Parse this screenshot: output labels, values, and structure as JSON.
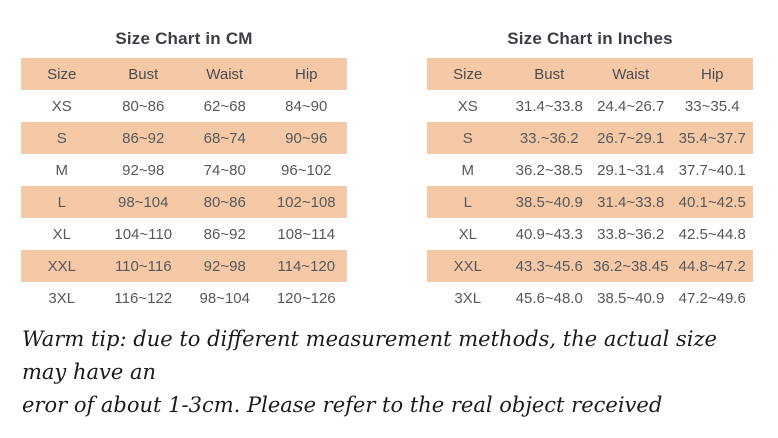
{
  "chart_data": [
    {
      "type": "table",
      "title": "Size Chart in CM",
      "columns": [
        "Size",
        "Bust",
        "Waist",
        "Hip"
      ],
      "rows": [
        [
          "XS",
          "80~86",
          "62~68",
          "84~90"
        ],
        [
          "S",
          "86~92",
          "68~74",
          "90~96"
        ],
        [
          "M",
          "92~98",
          "74~80",
          "96~102"
        ],
        [
          "L",
          "98~104",
          "80~86",
          "102~108"
        ],
        [
          "XL",
          "104~110",
          "86~92",
          "108~114"
        ],
        [
          "XXL",
          "110~116",
          "92~98",
          "114~120"
        ],
        [
          "3XL",
          "116~122",
          "98~104",
          "120~126"
        ]
      ]
    },
    {
      "type": "table",
      "title": "Size Chart in Inches",
      "columns": [
        "Size",
        "Bust",
        "Waist",
        "Hip"
      ],
      "rows": [
        [
          "XS",
          "31.4~33.8",
          "24.4~26.7",
          "33~35.4"
        ],
        [
          "S",
          "33.~36.2",
          "26.7~29.1",
          "35.4~37.7"
        ],
        [
          "M",
          "36.2~38.5",
          "29.1~31.4",
          "37.7~40.1"
        ],
        [
          "L",
          "38.5~40.9",
          "31.4~33.8",
          "40.1~42.5"
        ],
        [
          "XL",
          "40.9~43.3",
          "33.8~36.2",
          "42.5~44.8"
        ],
        [
          "XXL",
          "43.3~45.6",
          "36.2~38.45",
          "44.8~47.2"
        ],
        [
          "3XL",
          "45.6~48.0",
          "38.5~40.9",
          "47.2~49.6"
        ]
      ]
    }
  ],
  "warm_tip": {
    "line1": "Warm tip: due to different measurement methods, the actual size may have an",
    "line2": "eror of about 1-3cm. Please refer to the real object received"
  },
  "colors": {
    "row_highlight": "#f6c9a6",
    "title_text": "#3d3d46",
    "cell_text": "#58585c",
    "tip_text": "#1b1b1b"
  }
}
